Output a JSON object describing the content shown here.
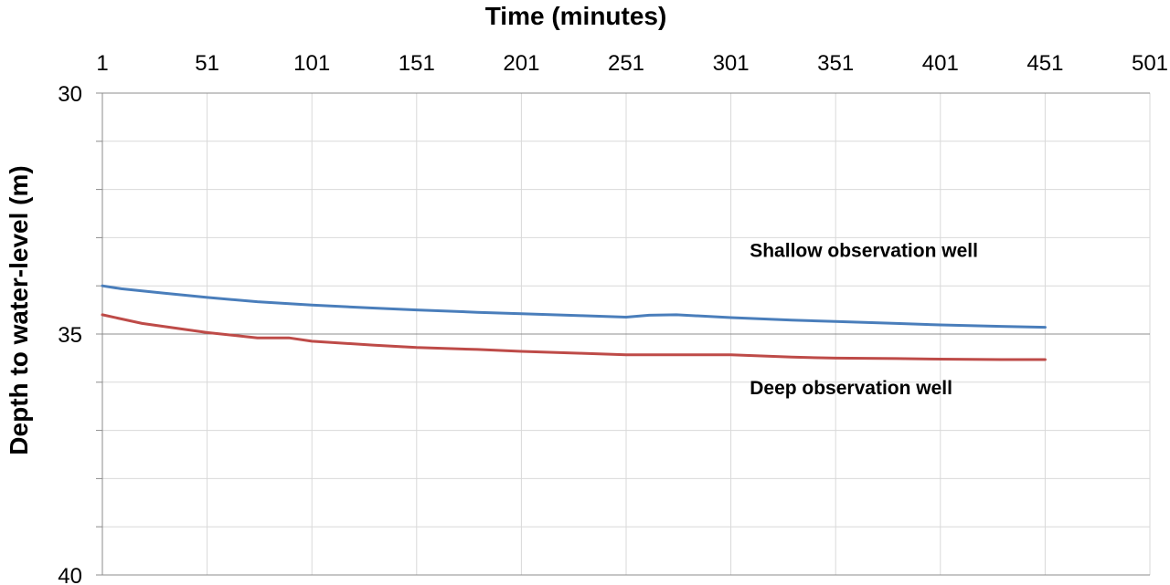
{
  "chart_data": {
    "type": "line",
    "xlabel": "Time (minutes)",
    "ylabel": "Depth to water-level (m)",
    "xlim": [
      1,
      501
    ],
    "ylim": [
      30,
      40
    ],
    "y_inverted": true,
    "x_axis_position": "top",
    "x_ticks": [
      1,
      51,
      101,
      151,
      201,
      251,
      301,
      351,
      401,
      451,
      501
    ],
    "y_ticks_major": [
      30,
      35,
      40
    ],
    "y_gridlines": [
      30,
      31,
      32,
      33,
      34,
      35,
      36,
      37,
      38,
      39,
      40
    ],
    "grid": true,
    "series": [
      {
        "name": "Shallow observation well",
        "color": "#4a7ebb",
        "x": [
          1,
          10,
          30,
          51,
          75,
          101,
          130,
          151,
          180,
          201,
          230,
          251,
          262,
          275,
          301,
          330,
          351,
          380,
          401,
          430,
          451
        ],
        "y": [
          34.0,
          34.06,
          34.15,
          34.24,
          34.33,
          34.4,
          34.46,
          34.5,
          34.55,
          34.58,
          34.62,
          34.65,
          34.61,
          34.6,
          34.66,
          34.71,
          34.74,
          34.78,
          34.81,
          34.84,
          34.86
        ]
      },
      {
        "name": "Deep observation well",
        "color": "#be4b48",
        "x": [
          1,
          20,
          51,
          75,
          90,
          101,
          130,
          151,
          180,
          201,
          230,
          251,
          270,
          301,
          330,
          351,
          380,
          401,
          430,
          451
        ],
        "y": [
          34.6,
          34.78,
          34.97,
          35.08,
          35.08,
          35.15,
          35.23,
          35.28,
          35.32,
          35.36,
          35.4,
          35.43,
          35.43,
          35.43,
          35.48,
          35.5,
          35.51,
          35.52,
          35.53,
          35.53
        ]
      }
    ],
    "annotations": [
      {
        "text": "Shallow observation well",
        "x": 310,
        "y": 33.4
      },
      {
        "text": "Deep observation well",
        "x": 310,
        "y": 36.25
      }
    ]
  }
}
